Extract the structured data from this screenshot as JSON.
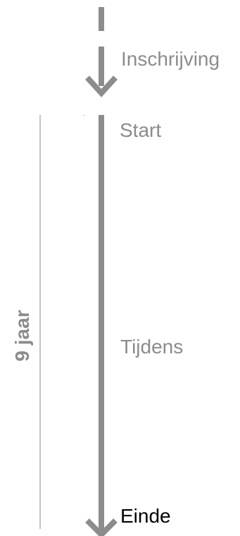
{
  "colors": {
    "arrow": "#8c8c8c",
    "duration_bracket": "#8c8c8c",
    "muted_text": "#8c8c8c",
    "final_text": "#000000"
  },
  "stages": [
    {
      "label": "Inschrijving"
    },
    {
      "label": "Start"
    },
    {
      "label": "Tijdens"
    },
    {
      "label": "Einde"
    }
  ],
  "duration": {
    "label": "9 jaar"
  }
}
